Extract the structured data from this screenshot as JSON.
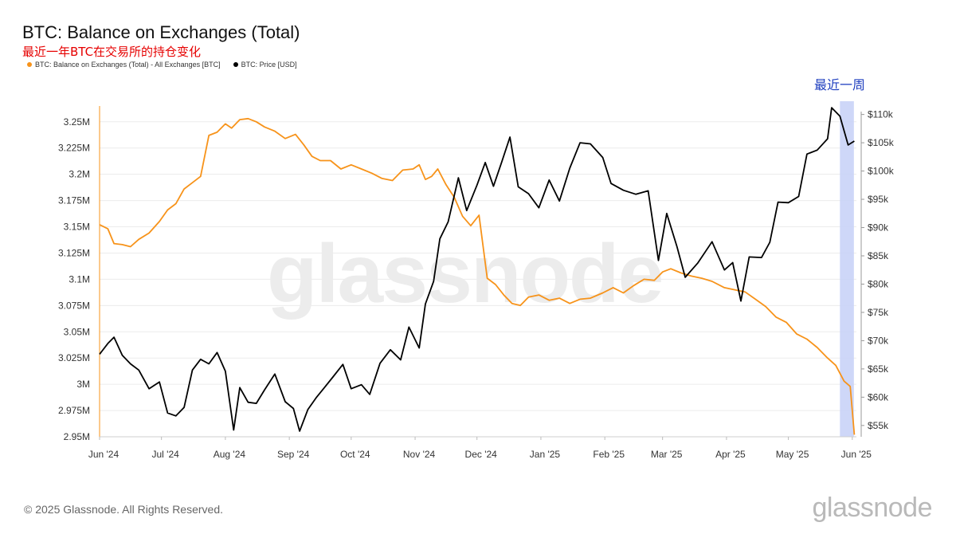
{
  "header": {
    "title": "BTC: Balance on Exchanges (Total)",
    "subtitle": "最近一年BTC在交易所的持仓变化"
  },
  "legend": [
    {
      "label": "BTC: Balance on Exchanges (Total) - All Exchanges [BTC]",
      "color": "#f7931a"
    },
    {
      "label": "BTC: Price [USD]",
      "color": "#000000"
    }
  ],
  "footer": {
    "copyright": "© 2025 Glassnode. All Rights Reserved.",
    "brand": "glassnode"
  },
  "watermark": "glassnode",
  "chart_data": {
    "type": "line",
    "x_ticks": [
      "Jun '24",
      "Jul '24",
      "Aug '24",
      "Sep '24",
      "Oct '24",
      "Nov '24",
      "Dec '24",
      "Jan '25",
      "Feb '25",
      "Mar '25",
      "Apr '25",
      "May '25",
      "Jun '25"
    ],
    "y_left": {
      "ylim": [
        2.95,
        3.265
      ],
      "unit": "M",
      "ticks": [
        "2.95M",
        "2.975M",
        "3M",
        "3.025M",
        "3.05M",
        "3.075M",
        "3.1M",
        "3.125M",
        "3.15M",
        "3.175M",
        "3.2M",
        "3.225M",
        "3.25M"
      ]
    },
    "y_right": {
      "ylim": [
        53000,
        111500
      ],
      "ticks": [
        "$55k",
        "$60k",
        "$65k",
        "$70k",
        "$75k",
        "$80k",
        "$85k",
        "$90k",
        "$95k",
        "$100k",
        "$105k",
        "$110k"
      ]
    },
    "grid": true,
    "annotation": {
      "text": "最近一周",
      "x_range": [
        "2025-05-26",
        "2025-06-01"
      ],
      "color": "#1f3fbf",
      "fill": "#c9d3f7"
    },
    "series": [
      {
        "name": "BTC: Balance on Exchanges (Total) - All Exchanges [BTC]",
        "axis": "left",
        "color": "#f7931a",
        "x": [
          "2024-06-01",
          "2024-06-05",
          "2024-06-08",
          "2024-06-12",
          "2024-06-16",
          "2024-06-20",
          "2024-06-25",
          "2024-06-30",
          "2024-07-04",
          "2024-07-08",
          "2024-07-12",
          "2024-07-16",
          "2024-07-20",
          "2024-07-24",
          "2024-07-28",
          "2024-08-01",
          "2024-08-04",
          "2024-08-08",
          "2024-08-12",
          "2024-08-16",
          "2024-08-20",
          "2024-08-25",
          "2024-08-30",
          "2024-09-04",
          "2024-09-08",
          "2024-09-12",
          "2024-09-16",
          "2024-09-21",
          "2024-09-26",
          "2024-10-01",
          "2024-10-06",
          "2024-10-11",
          "2024-10-16",
          "2024-10-21",
          "2024-10-26",
          "2024-10-31",
          "2024-11-03",
          "2024-11-06",
          "2024-11-09",
          "2024-11-12",
          "2024-11-16",
          "2024-11-20",
          "2024-11-24",
          "2024-11-28",
          "2024-12-02",
          "2024-12-06",
          "2024-12-10",
          "2024-12-14",
          "2024-12-18",
          "2024-12-22",
          "2024-12-26",
          "2024-12-31",
          "2025-01-05",
          "2025-01-10",
          "2025-01-15",
          "2025-01-20",
          "2025-01-25",
          "2025-01-31",
          "2025-02-05",
          "2025-02-10",
          "2025-02-15",
          "2025-02-20",
          "2025-02-25",
          "2025-03-01",
          "2025-03-05",
          "2025-03-10",
          "2025-03-15",
          "2025-03-20",
          "2025-03-25",
          "2025-03-31",
          "2025-04-05",
          "2025-04-10",
          "2025-04-15",
          "2025-04-20",
          "2025-04-25",
          "2025-04-30",
          "2025-05-05",
          "2025-05-10",
          "2025-05-15",
          "2025-05-20",
          "2025-05-24",
          "2025-05-28",
          "2025-05-31",
          "2025-06-02"
        ],
        "values": [
          3.152,
          3.148,
          3.134,
          3.133,
          3.131,
          3.138,
          3.144,
          3.155,
          3.166,
          3.172,
          3.186,
          3.192,
          3.198,
          3.237,
          3.24,
          3.248,
          3.244,
          3.252,
          3.253,
          3.25,
          3.245,
          3.241,
          3.234,
          3.238,
          3.228,
          3.217,
          3.213,
          3.213,
          3.205,
          3.209,
          3.205,
          3.201,
          3.196,
          3.194,
          3.204,
          3.205,
          3.209,
          3.195,
          3.198,
          3.205,
          3.19,
          3.178,
          3.16,
          3.151,
          3.161,
          3.101,
          3.095,
          3.085,
          3.077,
          3.075,
          3.083,
          3.085,
          3.08,
          3.082,
          3.077,
          3.081,
          3.082,
          3.087,
          3.092,
          3.087,
          3.094,
          3.1,
          3.099,
          3.107,
          3.11,
          3.106,
          3.103,
          3.101,
          3.098,
          3.092,
          3.09,
          3.088,
          3.081,
          3.074,
          3.064,
          3.059,
          3.048,
          3.043,
          3.035,
          3.025,
          3.018,
          3.003,
          2.998,
          2.952
        ]
      },
      {
        "name": "BTC: Price [USD]",
        "axis": "right",
        "color": "#000000",
        "x": [
          "2024-06-01",
          "2024-06-05",
          "2024-06-08",
          "2024-06-12",
          "2024-06-16",
          "2024-06-20",
          "2024-06-25",
          "2024-06-30",
          "2024-07-04",
          "2024-07-08",
          "2024-07-12",
          "2024-07-16",
          "2024-07-20",
          "2024-07-24",
          "2024-07-28",
          "2024-08-01",
          "2024-08-05",
          "2024-08-08",
          "2024-08-12",
          "2024-08-16",
          "2024-08-20",
          "2024-08-25",
          "2024-08-30",
          "2024-09-03",
          "2024-09-06",
          "2024-09-10",
          "2024-09-14",
          "2024-09-18",
          "2024-09-22",
          "2024-09-27",
          "2024-10-01",
          "2024-10-06",
          "2024-10-10",
          "2024-10-15",
          "2024-10-20",
          "2024-10-25",
          "2024-10-29",
          "2024-11-03",
          "2024-11-06",
          "2024-11-10",
          "2024-11-13",
          "2024-11-17",
          "2024-11-22",
          "2024-11-26",
          "2024-12-01",
          "2024-12-05",
          "2024-12-09",
          "2024-12-13",
          "2024-12-17",
          "2024-12-21",
          "2024-12-26",
          "2024-12-31",
          "2025-01-05",
          "2025-01-10",
          "2025-01-15",
          "2025-01-20",
          "2025-01-25",
          "2025-01-31",
          "2025-02-04",
          "2025-02-10",
          "2025-02-16",
          "2025-02-22",
          "2025-02-27",
          "2025-03-03",
          "2025-03-08",
          "2025-03-12",
          "2025-03-18",
          "2025-03-25",
          "2025-03-31",
          "2025-04-04",
          "2025-04-08",
          "2025-04-12",
          "2025-04-18",
          "2025-04-22",
          "2025-04-26",
          "2025-05-01",
          "2025-05-06",
          "2025-05-10",
          "2025-05-15",
          "2025-05-20",
          "2025-05-22",
          "2025-05-26",
          "2025-05-30",
          "2025-06-02"
        ],
        "values": [
          67600,
          69500,
          70600,
          67400,
          65900,
          64800,
          61500,
          62700,
          57200,
          56700,
          58200,
          64800,
          66700,
          65900,
          67900,
          64600,
          54200,
          61700,
          59100,
          58900,
          61300,
          64100,
          59200,
          58000,
          54000,
          57800,
          59900,
          61700,
          63500,
          65800,
          61500,
          62200,
          60500,
          66000,
          68400,
          66600,
          72400,
          68700,
          76500,
          80500,
          88000,
          91000,
          98800,
          93000,
          97500,
          101500,
          97300,
          101600,
          106000,
          97200,
          96000,
          93500,
          98400,
          94700,
          100500,
          105000,
          104800,
          102400,
          97800,
          96600,
          95900,
          96500,
          84200,
          92500,
          86600,
          81200,
          83700,
          87500,
          82500,
          83800,
          77000,
          84800,
          84700,
          87400,
          94500,
          94400,
          95500,
          103000,
          103700,
          105700,
          111200,
          109700,
          104600,
          105300
        ]
      }
    ]
  }
}
